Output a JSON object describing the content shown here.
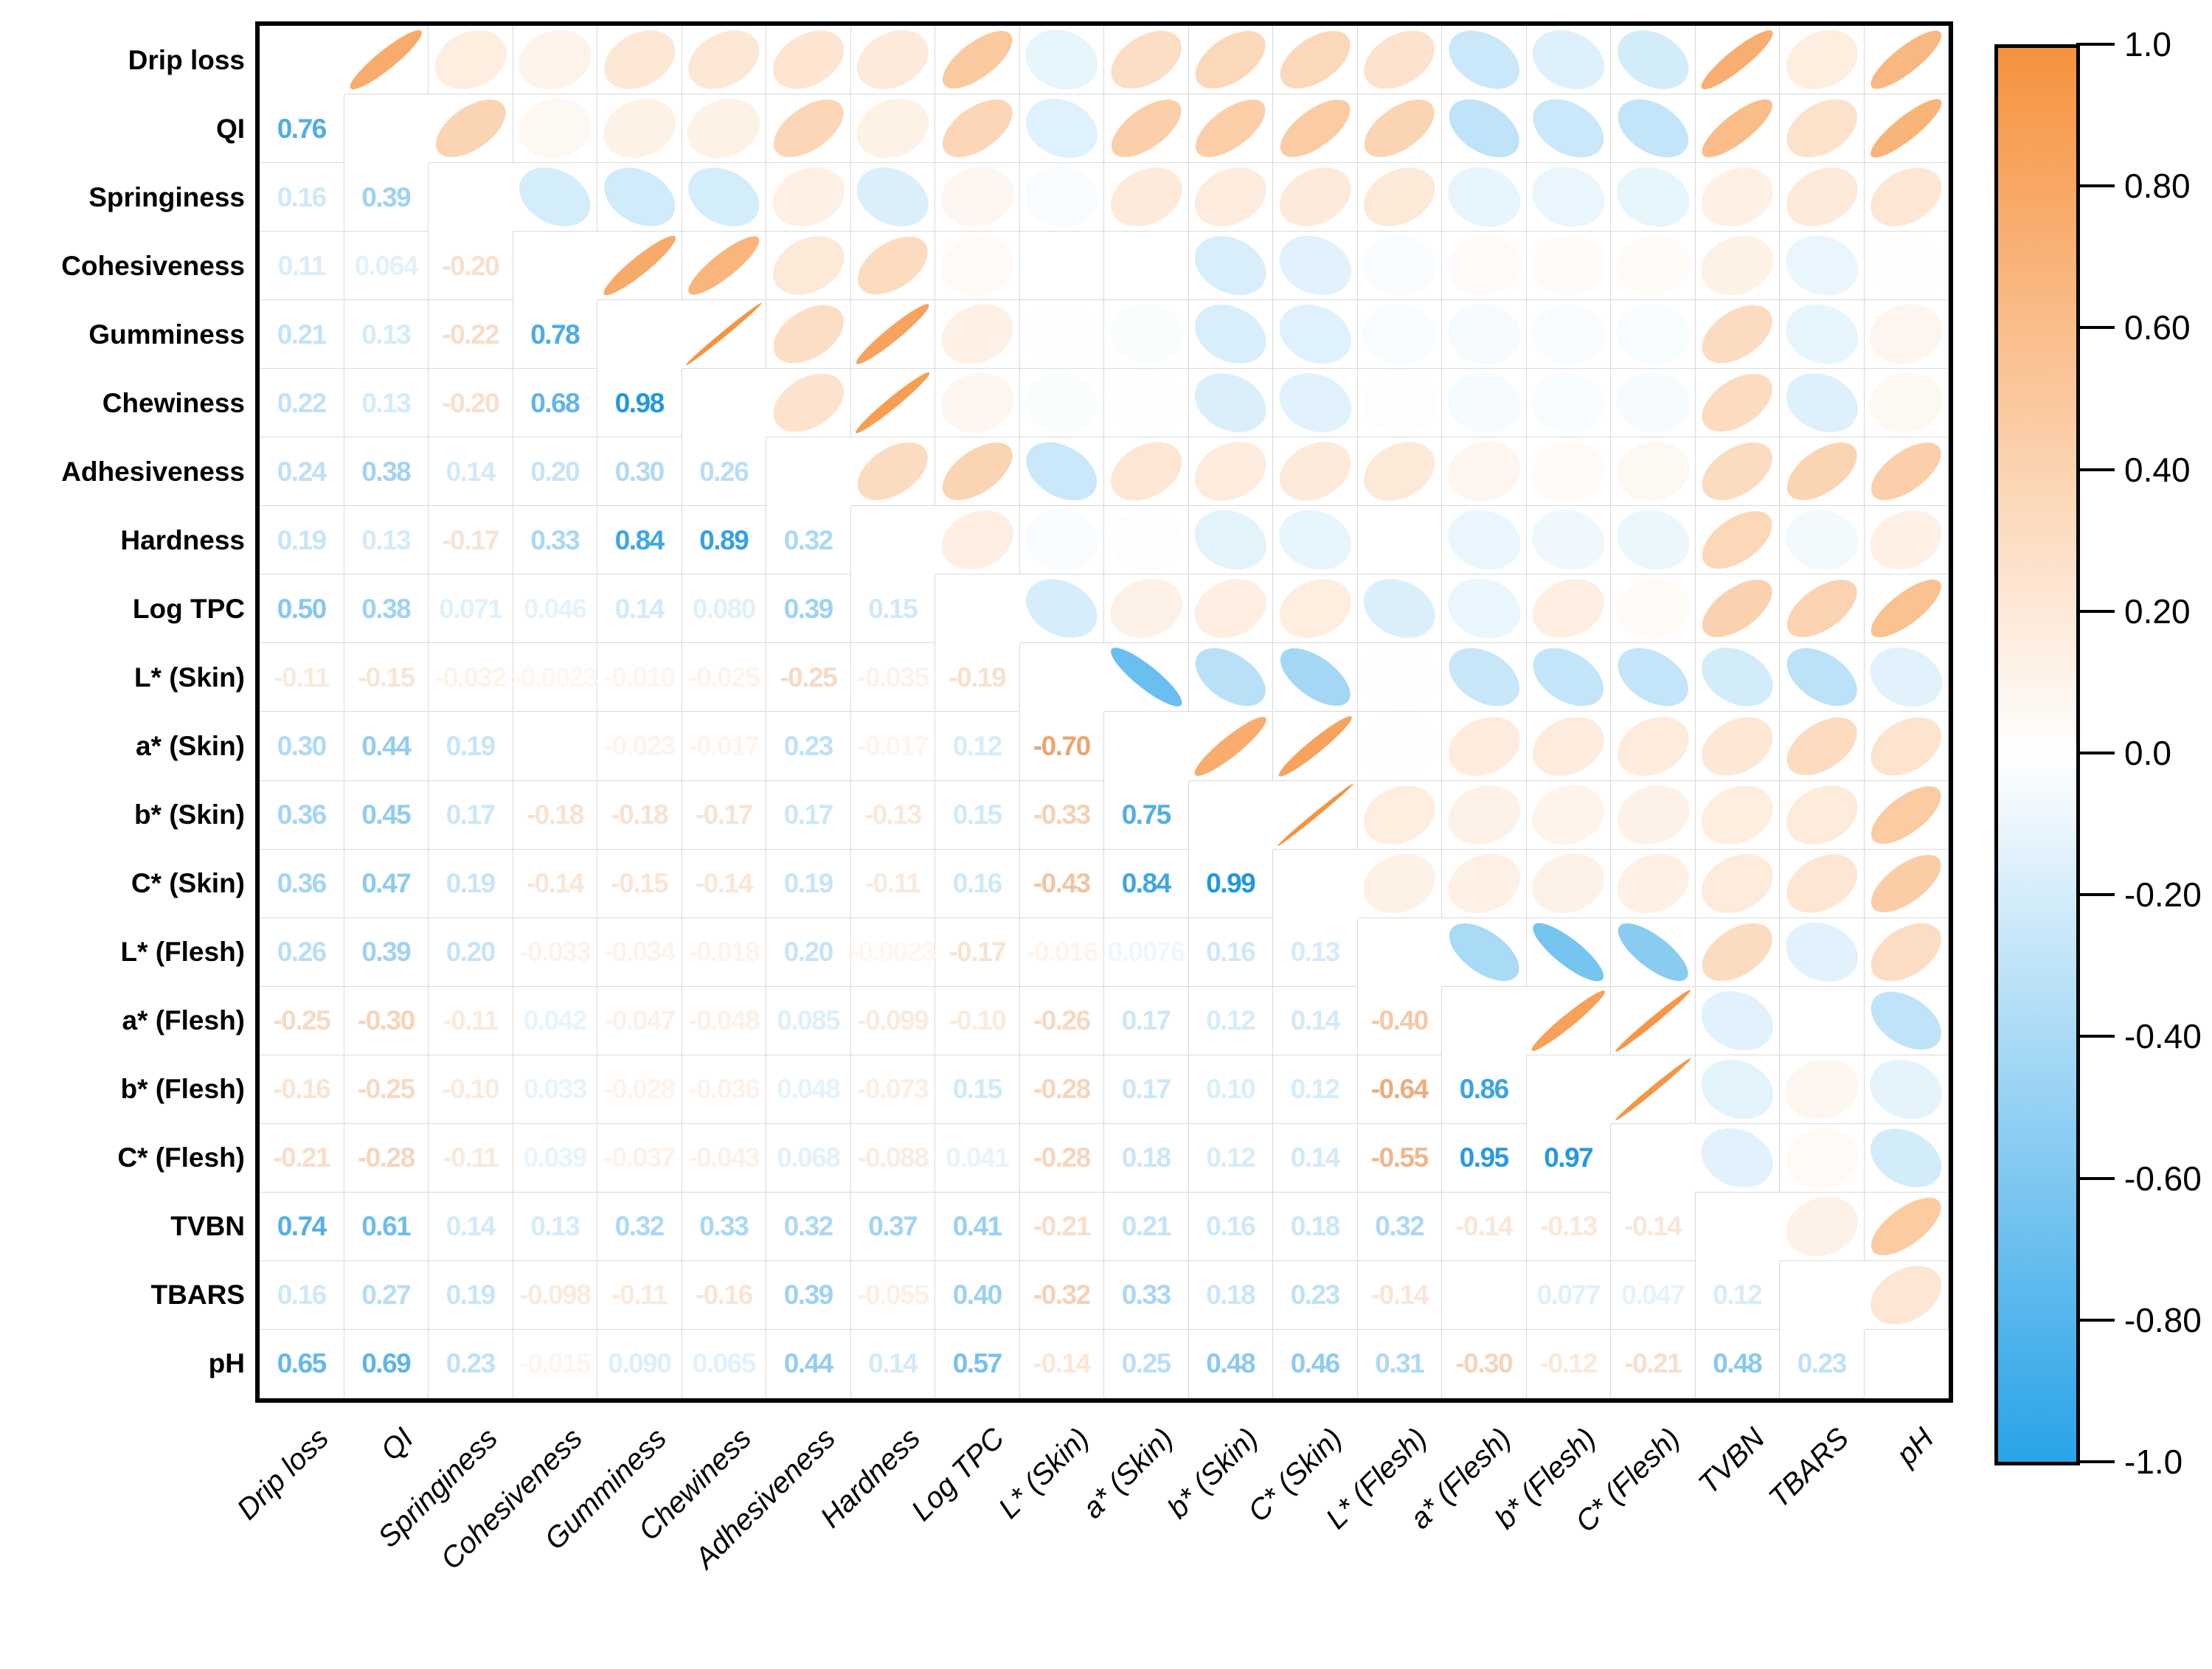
{
  "chart_data": {
    "type": "heatmap",
    "subtype": "correlation-matrix-ellipse",
    "title": "",
    "variables": [
      "Drip loss",
      "QI",
      "Springiness",
      "Cohesiveness",
      "Gumminess",
      "Chewiness",
      "Adhesiveness",
      "Hardness",
      "Log TPC",
      "L* (Skin)",
      "a* (Skin)",
      "b* (Skin)",
      "C* (Skin)",
      "L* (Flesh)",
      "a* (Flesh)",
      "b* (Flesh)",
      "C* (Flesh)",
      "TVBN",
      "TBARS",
      "pH"
    ],
    "lower_triangle_values": [
      [],
      [
        "0.76"
      ],
      [
        "0.16",
        "0.39"
      ],
      [
        "0.11",
        "0.064",
        "-0.20"
      ],
      [
        "0.21",
        "0.13",
        "-0.22",
        "0.78"
      ],
      [
        "0.22",
        "0.13",
        "-0.20",
        "0.68",
        "0.98"
      ],
      [
        "0.24",
        "0.38",
        "0.14",
        "0.20",
        "0.30",
        "0.26"
      ],
      [
        "0.19",
        "0.13",
        "-0.17",
        "0.33",
        "0.84",
        "0.89",
        "0.32"
      ],
      [
        "0.50",
        "0.38",
        "0.071",
        "0.046",
        "0.14",
        "0.080",
        "0.39",
        "0.15"
      ],
      [
        "-0.11",
        "-0.15",
        "-0.032",
        "-0.0023",
        "-0.010",
        "-0.025",
        "-0.25",
        "-0.035",
        "-0.19"
      ],
      [
        "0.30",
        "0.44",
        "0.19",
        null,
        "-0.023",
        "-0.017",
        "0.23",
        "-0.017",
        "0.12",
        "-0.70"
      ],
      [
        "0.36",
        "0.45",
        "0.17",
        "-0.18",
        "-0.18",
        "-0.17",
        "0.17",
        "-0.13",
        "0.15",
        "-0.33",
        "0.75"
      ],
      [
        "0.36",
        "0.47",
        "0.19",
        "-0.14",
        "-0.15",
        "-0.14",
        "0.19",
        "-0.11",
        "0.16",
        "-0.43",
        "0.84",
        "0.99"
      ],
      [
        "0.26",
        "0.39",
        "0.20",
        "-0.033",
        "-0.034",
        "-0.018",
        "0.20",
        "-0.0023",
        "-0.17",
        "-0.016",
        "0.0076",
        "0.16",
        "0.13"
      ],
      [
        "-0.25",
        "-0.30",
        "-0.11",
        "0.042",
        "-0.047",
        "-0.048",
        "0.085",
        "-0.099",
        "-0.10",
        "-0.26",
        "0.17",
        "0.12",
        "0.14",
        "-0.40"
      ],
      [
        "-0.16",
        "-0.25",
        "-0.10",
        "0.033",
        "-0.028",
        "-0.036",
        "0.048",
        "-0.073",
        "0.15",
        "-0.28",
        "0.17",
        "0.10",
        "0.12",
        "-0.64",
        "0.86"
      ],
      [
        "-0.21",
        "-0.28",
        "-0.11",
        "0.039",
        "-0.037",
        "-0.043",
        "0.068",
        "-0.088",
        "0.041",
        "-0.28",
        "0.18",
        "0.12",
        "0.14",
        "-0.55",
        "0.95",
        "0.97"
      ],
      [
        "0.74",
        "0.61",
        "0.14",
        "0.13",
        "0.32",
        "0.33",
        "0.32",
        "0.37",
        "0.41",
        "-0.21",
        "0.21",
        "0.16",
        "0.18",
        "0.32",
        "-0.14",
        "-0.13",
        "-0.14"
      ],
      [
        "0.16",
        "0.27",
        "0.19",
        "-0.098",
        "-0.11",
        "-0.16",
        "0.39",
        "-0.055",
        "0.40",
        "-0.32",
        "0.33",
        "0.18",
        "0.23",
        "-0.14",
        null,
        "0.077",
        "0.047",
        "0.12"
      ],
      [
        "0.65",
        "0.69",
        "0.23",
        "-0.015",
        "0.090",
        "0.065",
        "0.44",
        "0.14",
        "0.57",
        "-0.14",
        "0.25",
        "0.48",
        "0.46",
        "0.31",
        "-0.30",
        "-0.12",
        "-0.21",
        "0.48",
        "0.23"
      ]
    ],
    "significant_pairs": [
      [
        1,
        2
      ],
      [
        1,
        9
      ],
      [
        1,
        12
      ],
      [
        1,
        13
      ],
      [
        1,
        18
      ],
      [
        1,
        20
      ],
      [
        2,
        3
      ],
      [
        2,
        7
      ],
      [
        2,
        9
      ],
      [
        2,
        11
      ],
      [
        2,
        12
      ],
      [
        2,
        13
      ],
      [
        2,
        14
      ],
      [
        2,
        18
      ],
      [
        2,
        20
      ],
      [
        4,
        5
      ],
      [
        4,
        6
      ],
      [
        5,
        6
      ],
      [
        5,
        8
      ],
      [
        6,
        8
      ],
      [
        7,
        9
      ],
      [
        7,
        19
      ],
      [
        7,
        20
      ],
      [
        8,
        18
      ],
      [
        9,
        18
      ],
      [
        9,
        19
      ],
      [
        9,
        20
      ],
      [
        10,
        11
      ],
      [
        10,
        13
      ],
      [
        11,
        12
      ],
      [
        11,
        13
      ],
      [
        12,
        13
      ],
      [
        12,
        20
      ],
      [
        13,
        20
      ],
      [
        14,
        15
      ],
      [
        14,
        16
      ],
      [
        14,
        17
      ],
      [
        15,
        16
      ],
      [
        15,
        17
      ],
      [
        16,
        17
      ],
      [
        18,
        20
      ]
    ],
    "significance_marker": "*",
    "value_range": [
      -1,
      1
    ],
    "legend_position": "right",
    "colorbar_ticks": [
      "1.0",
      "0.80",
      "0.60",
      "0.40",
      "0.20",
      "0.0",
      "-0.20",
      "-0.40",
      "-0.60",
      "-0.80",
      "-1.0"
    ],
    "colors": {
      "positive_ellipse_max": "#F6923E",
      "negative_ellipse_max": "#29A3E8",
      "positive_value_text": "#1E96DE",
      "negative_value_text": "#E2843A",
      "grid_line": "#D9D9D9",
      "frame": "#000000",
      "background": "#FFFFFF"
    }
  }
}
